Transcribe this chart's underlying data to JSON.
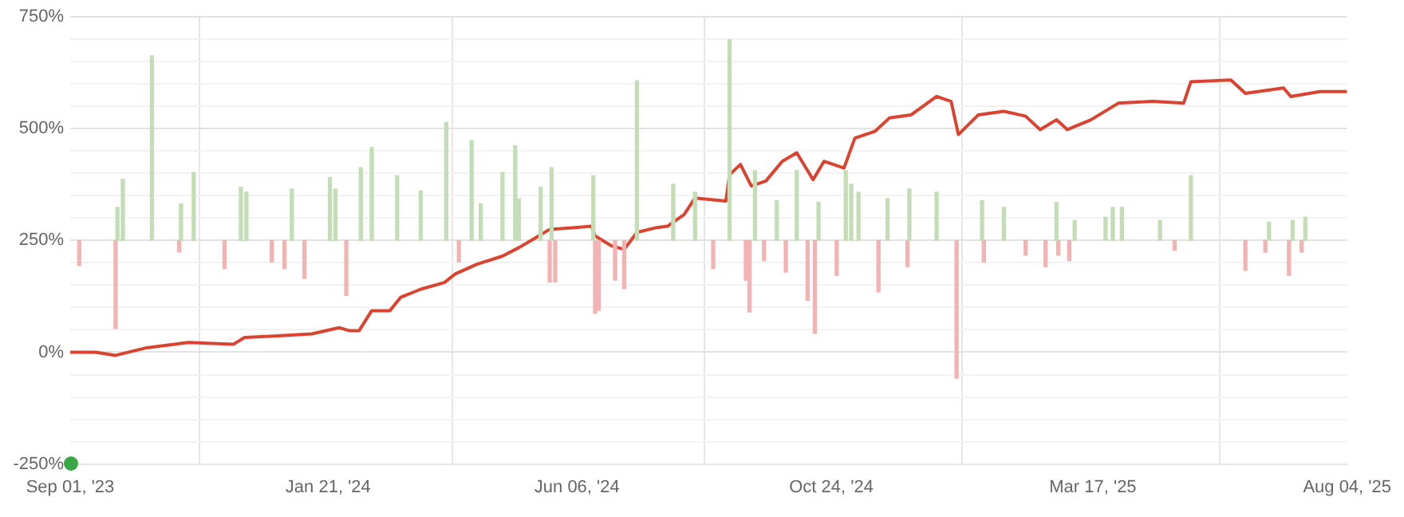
{
  "chart_data": {
    "type": "line",
    "xlim": [
      "2023-09-01",
      "2025-08-04"
    ],
    "xticks": [
      {
        "value": "2023-09-01",
        "label": "Sep 01, '23"
      },
      {
        "value": "2024-01-21",
        "label": "Jan 21, '24"
      },
      {
        "value": "2024-06-06",
        "label": "Jun 06, '24"
      },
      {
        "value": "2024-10-24",
        "label": "Oct 24, '24"
      },
      {
        "value": "2025-03-17",
        "label": "Mar 17, '25"
      },
      {
        "value": "2025-08-04",
        "label": "Aug 04, '25"
      }
    ],
    "ylim": [
      -250,
      750
    ],
    "yticks": [
      {
        "value": -250,
        "label": "-250%"
      },
      {
        "value": -200,
        "label": null
      },
      {
        "value": -150,
        "label": null
      },
      {
        "value": -100,
        "label": null
      },
      {
        "value": -50,
        "label": null
      },
      {
        "value": 0,
        "label": "0%"
      },
      {
        "value": 50,
        "label": null
      },
      {
        "value": 100,
        "label": null
      },
      {
        "value": 150,
        "label": null
      },
      {
        "value": 200,
        "label": null
      },
      {
        "value": 250,
        "label": "250%"
      },
      {
        "value": 300,
        "label": null
      },
      {
        "value": 350,
        "label": null
      },
      {
        "value": 400,
        "label": null
      },
      {
        "value": 450,
        "label": null
      },
      {
        "value": 500,
        "label": "500%"
      },
      {
        "value": 550,
        "label": null
      },
      {
        "value": 600,
        "label": null
      },
      {
        "value": 650,
        "label": null
      },
      {
        "value": 700,
        "label": null
      },
      {
        "value": 750,
        "label": "750%"
      }
    ],
    "grid": true,
    "legend": false,
    "marker": "none",
    "line_style": "solid",
    "series": [
      {
        "type": "bar",
        "color": "#c3deb6",
        "x": [
          "2023-09-27",
          "2023-09-30",
          "2023-10-16",
          "2023-11-01",
          "2023-11-08",
          "2023-12-04",
          "2023-12-07",
          "2024-01-01",
          "2024-01-22",
          "2024-01-25",
          "2024-02-08",
          "2024-02-14",
          "2024-02-28",
          "2024-03-12",
          "2024-03-26",
          "2024-04-09",
          "2024-04-14",
          "2024-04-26",
          "2024-05-03",
          "2024-05-05",
          "2024-05-17",
          "2024-05-23",
          "2024-06-15",
          "2024-07-09",
          "2024-07-29",
          "2024-08-10",
          "2024-08-29",
          "2024-09-12",
          "2024-09-24",
          "2024-10-05",
          "2024-10-17",
          "2024-11-01",
          "2024-11-04",
          "2024-11-08",
          "2024-11-24",
          "2024-12-06",
          "2024-12-21",
          "2025-01-15",
          "2025-01-27",
          "2025-02-25",
          "2025-03-07",
          "2025-03-24",
          "2025-03-28",
          "2025-04-02",
          "2025-04-23",
          "2025-05-10",
          "2025-06-22",
          "2025-07-05",
          "2025-07-12"
        ],
        "base": [
          250,
          250,
          250,
          250,
          250,
          250,
          250,
          250,
          250,
          250,
          250,
          250,
          250,
          250,
          250,
          250,
          250,
          250,
          250,
          250,
          250,
          250,
          250,
          250,
          250,
          250,
          250,
          250,
          250,
          250,
          250,
          250,
          250,
          250,
          250,
          250,
          250,
          250,
          250,
          250,
          250,
          250,
          250,
          250,
          250,
          250,
          250,
          250,
          250
        ],
        "values": [
          74,
          137,
          413,
          82,
          152,
          119,
          108,
          115,
          141,
          115,
          163,
          208,
          145,
          111,
          264,
          223,
          82,
          152,
          212,
          93,
          119,
          163,
          145,
          357,
          126,
          108,
          449,
          156,
          89,
          156,
          85,
          156,
          126,
          108,
          93,
          115,
          108,
          89,
          74,
          85,
          45,
          52,
          74,
          74,
          45,
          145,
          41,
          45,
          52
        ]
      },
      {
        "type": "bar",
        "color": "#f2b3b3",
        "x": [
          "2023-09-06",
          "2023-09-26",
          "2023-10-31",
          "2023-11-25",
          "2023-12-21",
          "2023-12-28",
          "2024-01-08",
          "2024-01-31",
          "2024-04-02",
          "2024-05-22",
          "2024-05-25",
          "2024-06-16",
          "2024-06-18",
          "2024-06-27",
          "2024-07-02",
          "2024-08-20",
          "2024-09-07",
          "2024-09-09",
          "2024-09-17",
          "2024-09-29",
          "2024-10-11",
          "2024-10-15",
          "2024-10-27",
          "2024-11-19",
          "2024-12-05",
          "2025-01-01",
          "2025-01-16",
          "2025-02-08",
          "2025-02-19",
          "2025-02-26",
          "2025-03-04",
          "2025-05-01",
          "2025-06-09",
          "2025-06-20",
          "2025-07-03",
          "2025-07-10"
        ],
        "base": [
          250,
          250,
          250,
          250,
          250,
          250,
          250,
          250,
          250,
          250,
          250,
          250,
          250,
          250,
          250,
          250,
          250,
          250,
          250,
          250,
          250,
          250,
          250,
          250,
          250,
          250,
          250,
          250,
          250,
          250,
          250,
          250,
          250,
          250,
          250,
          250
        ],
        "values": [
          -56,
          -197,
          -26,
          -63,
          -48,
          -63,
          -85,
          -123,
          -48,
          -93,
          -93,
          -163,
          -156,
          -89,
          -108,
          -63,
          -89,
          -160,
          -45,
          -71,
          -134,
          -208,
          -78,
          -115,
          -59,
          -308,
          -48,
          -33,
          -59,
          -33,
          -45,
          -22,
          -67,
          -26,
          -78,
          -26
        ]
      },
      {
        "color": "#d9432f",
        "x": [
          "2023-09-01",
          "2023-09-15",
          "2023-09-26",
          "2023-10-13",
          "2023-11-05",
          "2023-11-30",
          "2023-12-06",
          "2023-12-26",
          "2024-01-12",
          "2024-01-27",
          "2024-02-02",
          "2024-02-07",
          "2024-02-14",
          "2024-02-24",
          "2024-03-01",
          "2024-03-12",
          "2024-03-25",
          "2024-03-31",
          "2024-04-12",
          "2024-04-26",
          "2024-05-05",
          "2024-05-13",
          "2024-05-22",
          "2024-06-05",
          "2024-06-14",
          "2024-06-16",
          "2024-06-25",
          "2024-07-02",
          "2024-07-09",
          "2024-07-20",
          "2024-07-26",
          "2024-08-04",
          "2024-08-10",
          "2024-08-27",
          "2024-08-29",
          "2024-09-04",
          "2024-09-10",
          "2024-09-18",
          "2024-09-27",
          "2024-10-05",
          "2024-10-14",
          "2024-10-20",
          "2024-10-31",
          "2024-11-06",
          "2024-11-17",
          "2024-11-25",
          "2024-12-07",
          "2024-12-21",
          "2024-12-29",
          "2025-01-02",
          "2025-01-13",
          "2025-01-27",
          "2025-02-08",
          "2025-02-16",
          "2025-02-25",
          "2025-03-03",
          "2025-03-16",
          "2025-03-31",
          "2025-04-19",
          "2025-05-06",
          "2025-05-10",
          "2025-06-01",
          "2025-06-09",
          "2025-06-30",
          "2025-07-04",
          "2025-07-20",
          "2025-08-04"
        ],
        "values": [
          0,
          0,
          -7,
          10,
          22,
          18,
          33,
          37,
          41,
          55,
          48,
          48,
          93,
          93,
          123,
          141,
          156,
          175,
          197,
          215,
          234,
          253,
          275,
          279,
          282,
          260,
          238,
          230,
          268,
          279,
          282,
          308,
          345,
          338,
          397,
          420,
          372,
          383,
          427,
          446,
          386,
          427,
          412,
          479,
          494,
          524,
          531,
          572,
          561,
          487,
          531,
          539,
          528,
          498,
          520,
          498,
          520,
          557,
          561,
          557,
          605,
          609,
          579,
          591,
          572,
          583,
          583
        ]
      }
    ]
  }
}
